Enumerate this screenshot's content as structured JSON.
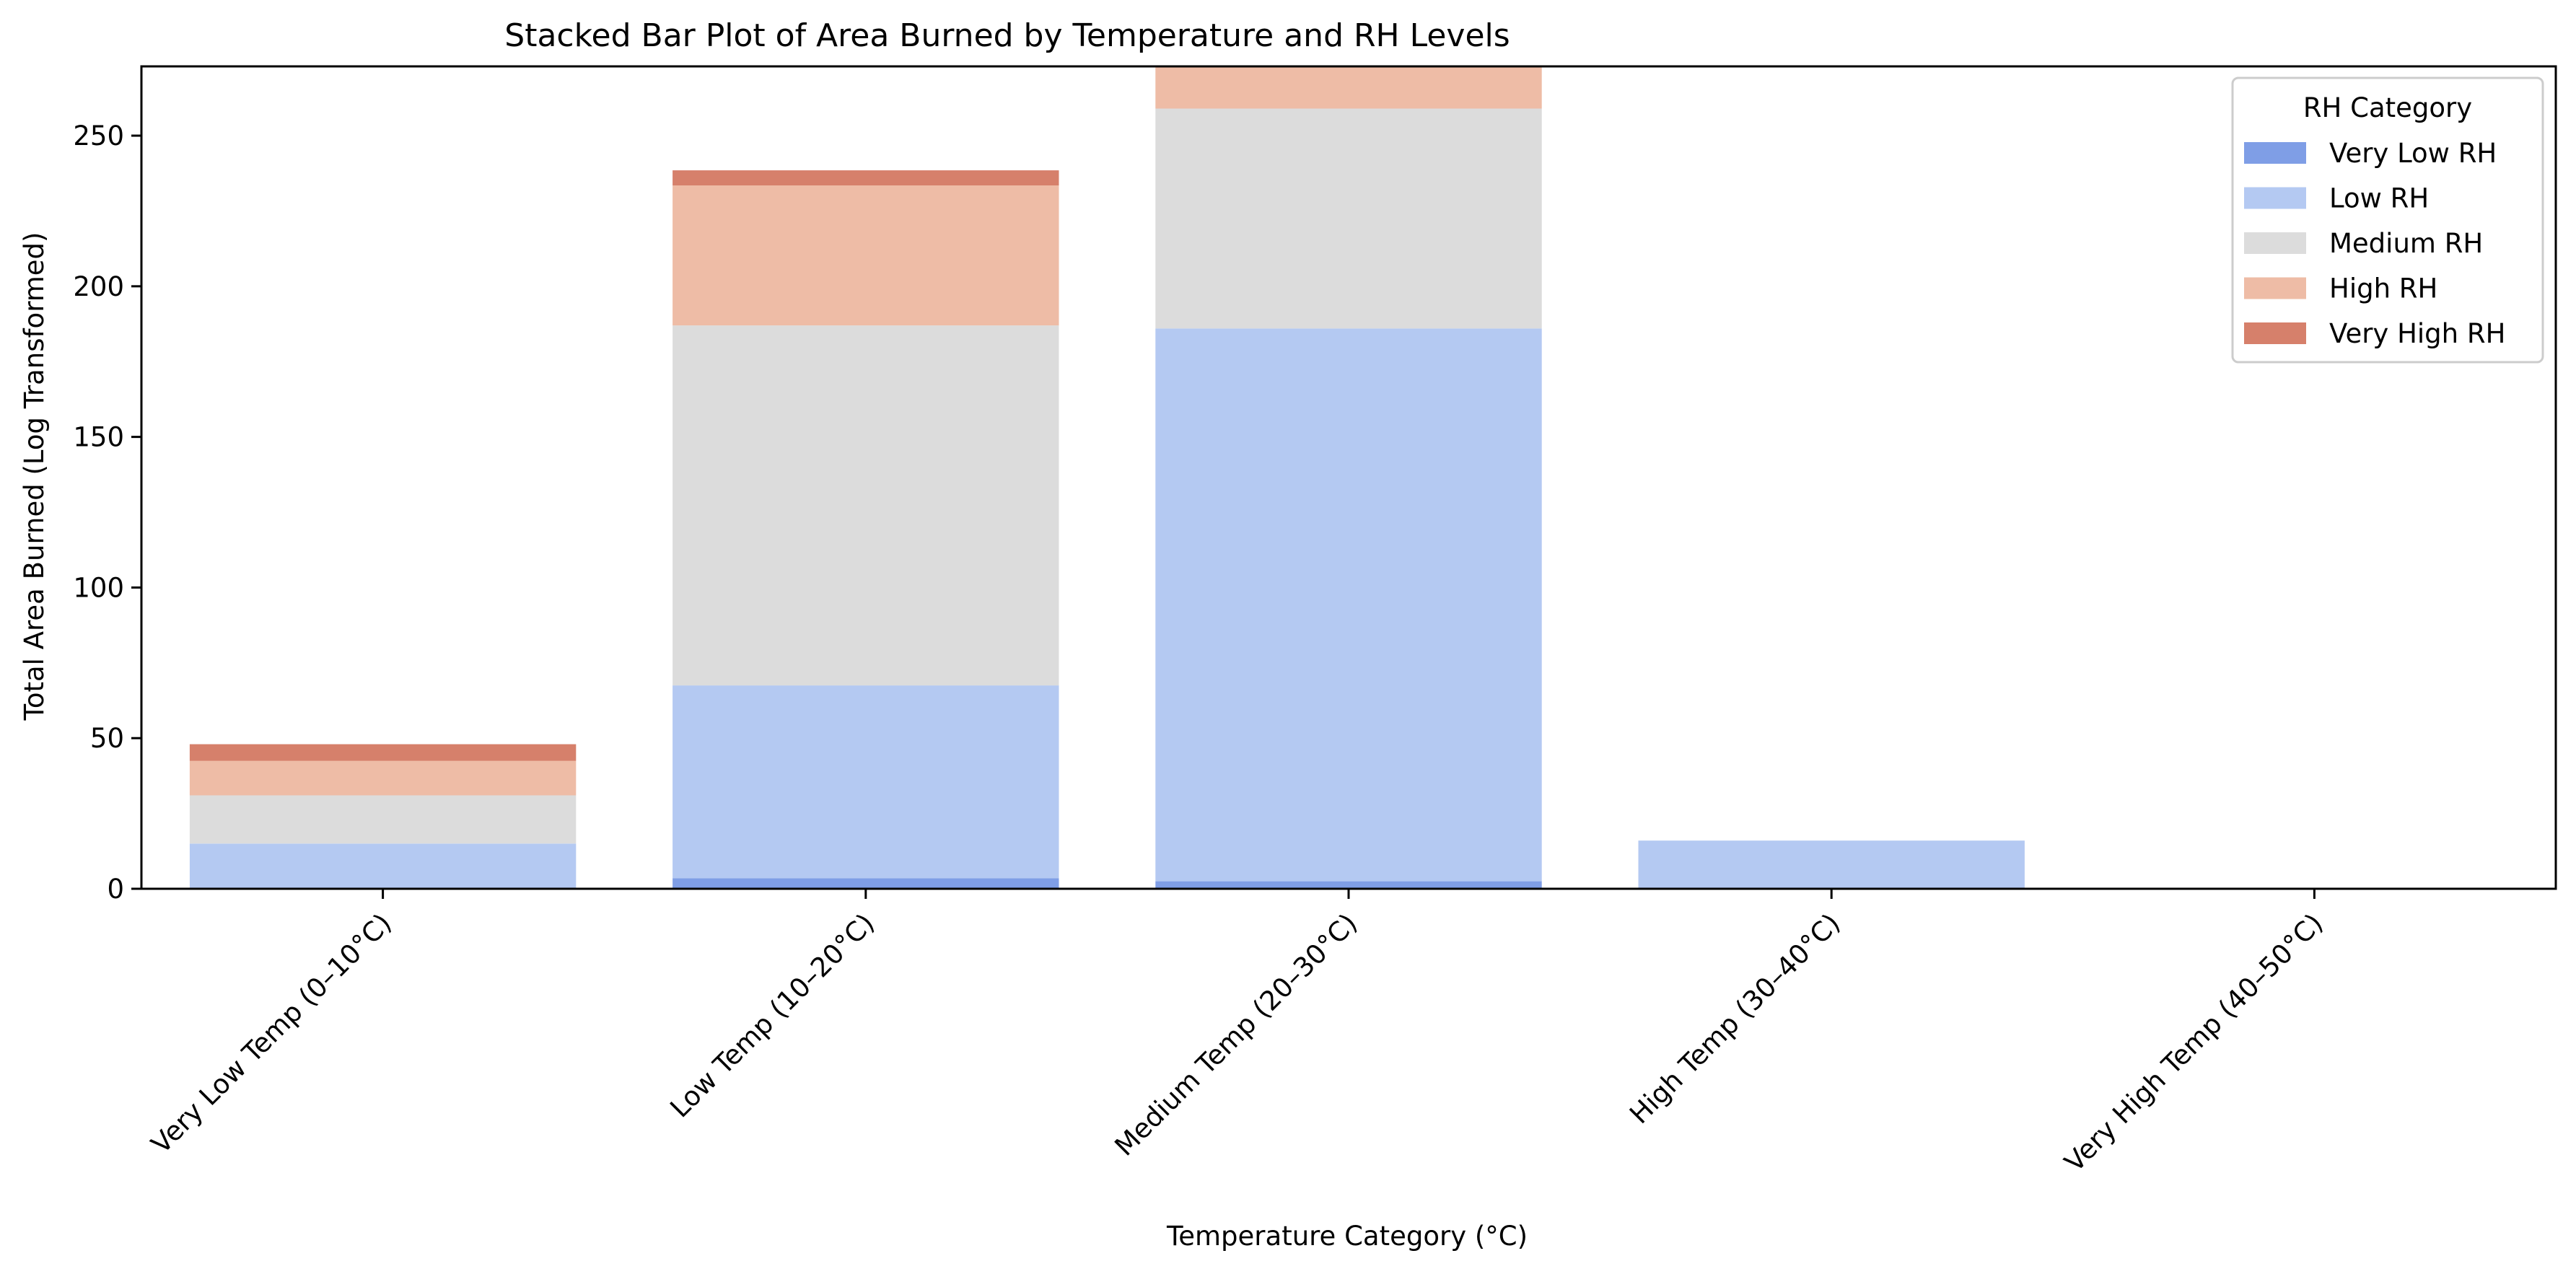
{
  "chart_data": {
    "type": "bar",
    "stacked": true,
    "title": "Stacked Bar Plot of Area Burned by Temperature and RH Levels",
    "xlabel": "Temperature Category (°C)",
    "ylabel": "Total Area Burned (Log Transformed)",
    "ylim": [
      0,
      273
    ],
    "yticks": [
      0,
      50,
      100,
      150,
      200,
      250
    ],
    "xtick_rotation_deg": 45,
    "grid": false,
    "legend": {
      "title": "RH Category",
      "position": "top-right"
    },
    "categories": [
      "Very Low Temp (0–10°C)",
      "Low Temp (10–20°C)",
      "Medium Temp (20–30°C)",
      "High Temp (30–40°C)",
      "Very High Temp (40–50°C)"
    ],
    "series": [
      {
        "name": "Very Low RH",
        "color": "#7f9ee6",
        "values": [
          0,
          3.5,
          2.5,
          0,
          0
        ]
      },
      {
        "name": "Low RH",
        "color": "#b4c9f2",
        "values": [
          15,
          64,
          183.5,
          16,
          0
        ]
      },
      {
        "name": "Medium RH",
        "color": "#dcdcdc",
        "values": [
          16,
          119.5,
          73,
          0,
          0
        ]
      },
      {
        "name": "High RH",
        "color": "#eebca6",
        "values": [
          11.5,
          46.5,
          30,
          0,
          0
        ]
      },
      {
        "name": "Very High RH",
        "color": "#d6806b",
        "values": [
          5.5,
          5,
          0,
          0,
          0
        ]
      }
    ]
  }
}
